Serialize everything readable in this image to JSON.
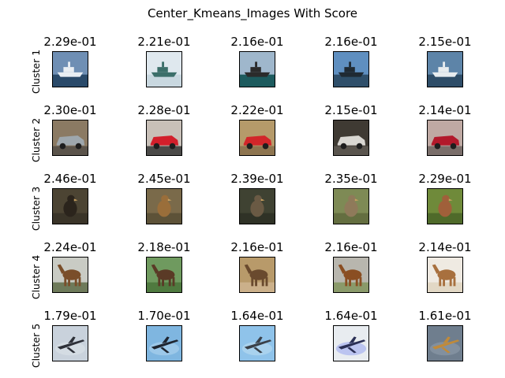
{
  "title": "Center_Kmeans_Images With Score",
  "rows": [
    {
      "label": "Cluster 1",
      "scores": [
        "2.29e-01",
        "2.21e-01",
        "2.16e-01",
        "2.16e-01",
        "2.15e-01"
      ],
      "subjects": [
        "ship",
        "ship",
        "ship",
        "ship",
        "ship"
      ]
    },
    {
      "label": "Cluster 2",
      "scores": [
        "2.30e-01",
        "2.28e-01",
        "2.22e-01",
        "2.15e-01",
        "2.14e-01"
      ],
      "subjects": [
        "car",
        "car",
        "car",
        "car",
        "car"
      ]
    },
    {
      "label": "Cluster 3",
      "scores": [
        "2.46e-01",
        "2.45e-01",
        "2.39e-01",
        "2.35e-01",
        "2.29e-01"
      ],
      "subjects": [
        "bird",
        "bird",
        "bird",
        "bird",
        "bird"
      ]
    },
    {
      "label": "Cluster 4",
      "scores": [
        "2.24e-01",
        "2.18e-01",
        "2.16e-01",
        "2.16e-01",
        "2.14e-01"
      ],
      "subjects": [
        "horse",
        "horse",
        "horse",
        "horse",
        "horse"
      ]
    },
    {
      "label": "Cluster 5",
      "scores": [
        "1.79e-01",
        "1.70e-01",
        "1.64e-01",
        "1.64e-01",
        "1.61e-01"
      ],
      "subjects": [
        "airplane",
        "airplane",
        "airplane",
        "airplane",
        "airplane"
      ]
    }
  ],
  "palettes": {
    "ship": [
      {
        "bg": "#6f8fb4",
        "low": "#2a4a6a",
        "fg": "#e9eef3"
      },
      {
        "bg": "#dfe8ee",
        "low": "#c9d8e0",
        "fg": "#3c6f6a"
      },
      {
        "bg": "#9fb7cc",
        "low": "#1d5b5e",
        "fg": "#2b2b2b"
      },
      {
        "bg": "#5f8fc0",
        "low": "#2f4f6a",
        "fg": "#1f2a33"
      },
      {
        "bg": "#5d84a8",
        "low": "#2e4d68",
        "fg": "#e7ecef"
      }
    ],
    "car": [
      {
        "bg": "#8b7a63",
        "low": "#5b544b",
        "fg": "#9ea7ad"
      },
      {
        "bg": "#c8c0b8",
        "low": "#4b4a48",
        "fg": "#d21f2b"
      },
      {
        "bg": "#b59a6a",
        "low": "#8e7550",
        "fg": "#d2262a"
      },
      {
        "bg": "#3f3a33",
        "low": "#5a554e",
        "fg": "#d9d7d2"
      },
      {
        "bg": "#bfa9a3",
        "low": "#7a6e6a",
        "fg": "#b2192b"
      }
    ],
    "bird": [
      {
        "bg": "#4c4433",
        "low": "#3a3428",
        "fg": "#2b241c"
      },
      {
        "bg": "#7a6a4a",
        "low": "#5d5238",
        "fg": "#9a6e3a"
      },
      {
        "bg": "#3f4232",
        "low": "#2f3226",
        "fg": "#6a5a44"
      },
      {
        "bg": "#7e8a55",
        "low": "#646e40",
        "fg": "#8f7a5a"
      },
      {
        "bg": "#6f8a3a",
        "low": "#4f6a2a",
        "fg": "#a0603a"
      }
    ],
    "horse": [
      {
        "bg": "#c9cbc4",
        "low": "#6e7a5a",
        "fg": "#7a4e2a"
      },
      {
        "bg": "#6f9a5f",
        "low": "#4f7a3f",
        "fg": "#5a3a26"
      },
      {
        "bg": "#b89a6a",
        "low": "#cbb08a",
        "fg": "#6a4a2e"
      },
      {
        "bg": "#b8b6ae",
        "low": "#8a9a6a",
        "fg": "#8a4e22"
      },
      {
        "bg": "#efeae2",
        "low": "#e2d8c5",
        "fg": "#a8703e"
      }
    ],
    "airplane": [
      {
        "bg": "#c9d2dc",
        "low": "#d9e0e6",
        "fg": "#2d3038"
      },
      {
        "bg": "#7fb6e0",
        "low": "#a8d0ec",
        "fg": "#1f2530"
      },
      {
        "bg": "#8fc3ea",
        "low": "#b3d8f0",
        "fg": "#3a4048"
      },
      {
        "bg": "#e8ecf0",
        "low": "#a8b4f0",
        "fg": "#2a2f55"
      },
      {
        "bg": "#6f7e8e",
        "low": "#8a98a6",
        "fg": "#c08a3a"
      }
    ]
  }
}
